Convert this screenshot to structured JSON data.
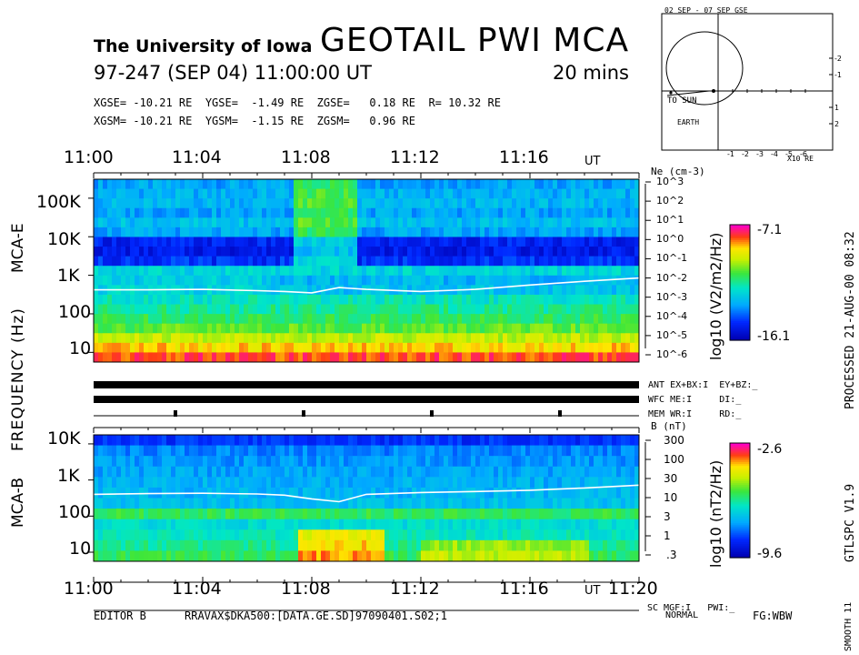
{
  "header": {
    "university": "The University of Iowa",
    "instrument": "GEOTAIL PWI MCA",
    "date_line": "97-247 (SEP 04) 11:00:00 UT",
    "duration": "20 mins",
    "gse_line": "XGSE= -10.21 RE  YGSE=  -1.49 RE  ZGSE=   0.18 RE  R= 10.32 RE",
    "gsm_line": "XGSM= -10.21 RE  YGSM=  -1.15 RE  ZGSM=   0.96 RE"
  },
  "orbit": {
    "title": "02 SEP - 07 SEP  GSE",
    "sun_label": "TO SUN",
    "earth_label": "EARTH",
    "unit_label": "X10 RE",
    "x_ticks": [
      "-1",
      "-2",
      "-3",
      "-4",
      "-5",
      "-6"
    ],
    "y_ticks": [
      "-2",
      "-1",
      "1",
      "2"
    ]
  },
  "axes": {
    "top_time_ticks": [
      "11:00",
      "11:04",
      "11:08",
      "11:12",
      "11:16"
    ],
    "top_ut": "UT",
    "bottom_time_ticks": [
      "11:00",
      "11:04",
      "11:08",
      "11:12",
      "11:16",
      "11:20"
    ],
    "bottom_ut": "UT",
    "mcae_freq_ticks": [
      "100K",
      "10K",
      "1K",
      "100",
      "10"
    ],
    "mcab_freq_ticks": [
      "10K",
      "1K",
      "100",
      "10"
    ],
    "ne_label": "Ne (cm-3)",
    "ne_ticks": [
      "10^3",
      "10^2",
      "10^1",
      "10^0",
      "10^-1",
      "10^-2",
      "10^-3",
      "10^-4",
      "10^-5",
      "10^-6"
    ],
    "b_label": "B (nT)",
    "b_ticks": [
      "300",
      "100",
      "30",
      "10",
      "3",
      "1",
      ".3"
    ],
    "freq_label": "FREQUENCY (Hz)",
    "mcae_label": "MCA-E",
    "mcab_label": "MCA-B"
  },
  "colorbars": {
    "e": {
      "max": "-7.1",
      "min": "-16.1",
      "units": "log10 (V2/m2/Hz)"
    },
    "b": {
      "max": "-2.6",
      "min": "-9.6",
      "units": "log10 (nT2/Hz)"
    }
  },
  "status": {
    "line1": "ANT EX+BX:I  EY+BZ:_",
    "line2": "WFC ME:I     DI:_",
    "line3": "MEM WR:I     RD:_",
    "sc_line": "SC MGF:I   PWI:_"
  },
  "side": {
    "processed": "PROCESSED 21-AUG-00  08:32",
    "version": "GTLSPC   V1.9",
    "smooth": "SMOOTH 11"
  },
  "footer": {
    "editor": "EDITOR B",
    "file": "RRAVAX$DKA500:[DATA.GE.SD]97090401.S02;1",
    "mode": "NORMAL",
    "fg": "FG:WBW"
  },
  "chart_data": [
    {
      "type": "heatmap",
      "title": "MCA-E",
      "xlabel": "UT",
      "ylabel": "FREQUENCY (Hz)",
      "xlim": [
        "11:00",
        "11:20"
      ],
      "ylim": [
        5.6,
        311000
      ],
      "yscale": "log",
      "zlim": [
        -16.1,
        -7.1
      ],
      "zlabel": "log10 (V2/m2/Hz)",
      "overlay_line": {
        "name": "Ne (cm-3)",
        "x_min": [
          0,
          2,
          4,
          6,
          7,
          8,
          9,
          10,
          12,
          14,
          16,
          18,
          20
        ],
        "y_freq_hz": [
          420,
          420,
          430,
          400,
          380,
          350,
          480,
          430,
          380,
          430,
          560,
          700,
          850
        ]
      }
    },
    {
      "type": "heatmap",
      "title": "MCA-B",
      "xlabel": "UT",
      "ylabel": "FREQUENCY (Hz)",
      "xlim": [
        "11:00",
        "11:20"
      ],
      "ylim": [
        5.6,
        17800
      ],
      "yscale": "log",
      "zlim": [
        -9.6,
        -2.6
      ],
      "zlabel": "log10 (nT2/Hz)",
      "overlay_line": {
        "name": "B (nT)",
        "x_min": [
          0,
          2,
          4,
          6,
          7,
          8,
          9,
          10,
          12,
          14,
          16,
          18,
          20
        ],
        "y_freq_hz": [
          400,
          420,
          430,
          410,
          380,
          300,
          250,
          400,
          450,
          480,
          520,
          600,
          720
        ]
      }
    }
  ]
}
